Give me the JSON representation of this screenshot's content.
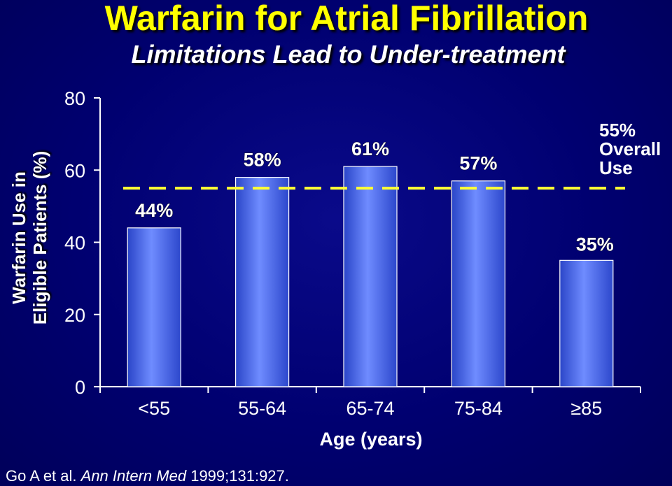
{
  "title": "Warfarin for Atrial Fibrillation",
  "subtitle": "Limitations Lead to Under-treatment",
  "citation": {
    "authors": "Go A et al.",
    "journal": "Ann Intern Med",
    "ref": "1999;131:927."
  },
  "colors": {
    "background": "#000066",
    "title": "#ffff00",
    "bar": "#4d6ff0",
    "reference_line": "#ffff33"
  },
  "chart_data": {
    "type": "bar",
    "categories": [
      "<55",
      "55-64",
      "65-74",
      "75-84",
      "≥85"
    ],
    "values": [
      44,
      58,
      61,
      57,
      35
    ],
    "data_labels": [
      "44%",
      "58%",
      "61%",
      "57%",
      "35%"
    ],
    "xlabel": "Age (years)",
    "ylabel_lines": [
      "Warfarin Use in",
      "Eligible Patients (%)"
    ],
    "ylim": [
      0,
      80
    ],
    "yticks": [
      0,
      20,
      40,
      60,
      80
    ],
    "grid": false,
    "reference_line": {
      "value": 55,
      "style": "dashed",
      "label_lines": [
        "55%",
        "Overall",
        "Use"
      ]
    }
  }
}
